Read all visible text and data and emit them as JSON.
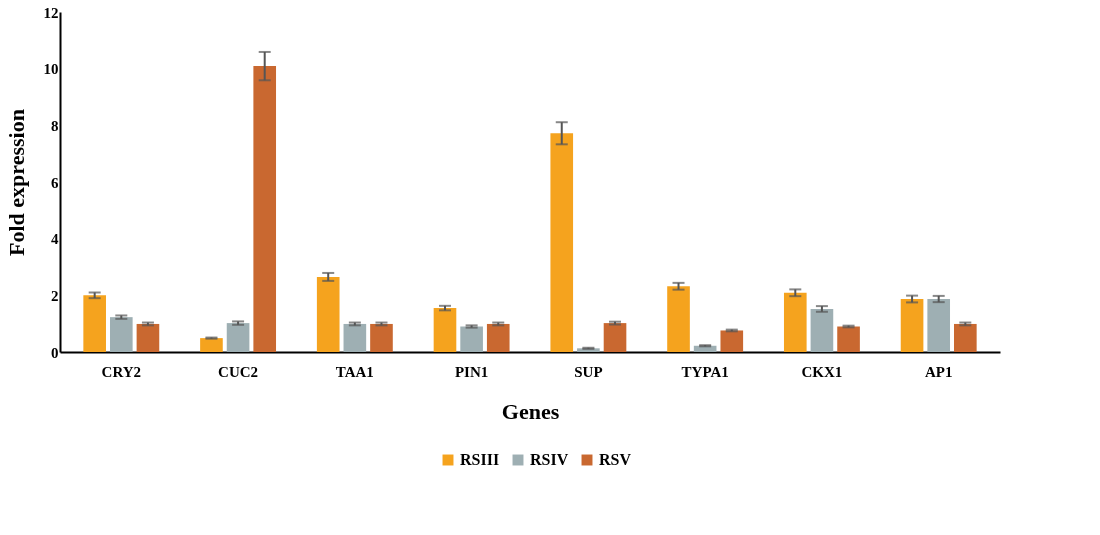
{
  "chart_data": {
    "type": "bar",
    "xlabel": "Genes",
    "ylabel": "Fold  expression",
    "categories": [
      "CRY2",
      "CUC2",
      "TAA1",
      "PIN1",
      "SUP",
      "TYPA1",
      "CKX1",
      "AP1"
    ],
    "series": [
      {
        "name": "RSIII",
        "color": "#f5a31e",
        "values": [
          2.0,
          0.49,
          2.65,
          1.55,
          7.72,
          2.32,
          2.09,
          1.87
        ],
        "errors": [
          0.1,
          0.02,
          0.14,
          0.08,
          0.39,
          0.12,
          0.12,
          0.12
        ]
      },
      {
        "name": "RSIV",
        "color": "#9eafb3",
        "values": [
          1.23,
          1.02,
          0.99,
          0.9,
          0.13,
          0.22,
          1.52,
          1.87
        ],
        "errors": [
          0.06,
          0.06,
          0.05,
          0.04,
          0.02,
          0.02,
          0.1,
          0.11
        ]
      },
      {
        "name": "RSV",
        "color": "#c96830",
        "values": [
          0.99,
          10.09,
          0.99,
          0.99,
          1.02,
          0.76,
          0.9,
          0.99
        ],
        "errors": [
          0.05,
          0.5,
          0.05,
          0.05,
          0.05,
          0.03,
          0.03,
          0.05
        ]
      }
    ],
    "ylim": [
      0,
      12
    ],
    "yticks": [
      0,
      2,
      4,
      6,
      8,
      10,
      12
    ],
    "grid": false,
    "legend": "bottom"
  }
}
